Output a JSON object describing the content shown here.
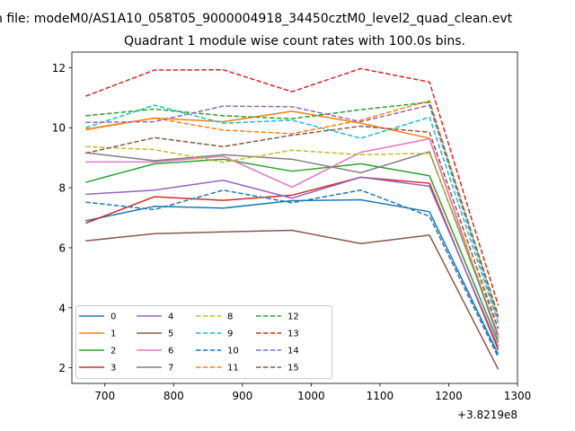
{
  "chart_data": {
    "type": "line",
    "suptitle": "n file: modeM0/AS1A10_058T05_9000004918_34450cztM0_level2_quad_clean.evt",
    "title": "Quadrant 1 module wise count rates with 100.0s bins.",
    "x_offset_label": "+3.8219e8",
    "xlim": [
      652,
      1300
    ],
    "ylim": [
      1.48,
      12.52
    ],
    "xticks": [
      700,
      800,
      900,
      1000,
      1100,
      1200,
      1300
    ],
    "yticks": [
      2,
      4,
      6,
      8,
      10,
      12
    ],
    "x": [
      672,
      772,
      872,
      972,
      1072,
      1172,
      1272
    ],
    "series": [
      {
        "name": "0",
        "color": "#1f77b4",
        "style": "solid",
        "values": [
          6.9,
          7.38,
          7.32,
          7.57,
          7.6,
          7.2,
          2.45
        ]
      },
      {
        "name": "1",
        "color": "#ff7f0e",
        "style": "solid",
        "values": [
          9.95,
          10.32,
          10.2,
          10.55,
          10.15,
          9.65,
          3.0
        ]
      },
      {
        "name": "2",
        "color": "#2ca02c",
        "style": "solid",
        "values": [
          8.18,
          8.8,
          8.95,
          8.55,
          8.8,
          8.4,
          2.85
        ]
      },
      {
        "name": "3",
        "color": "#d62728",
        "style": "solid",
        "values": [
          6.82,
          7.7,
          7.58,
          7.75,
          8.35,
          8.15,
          2.6
        ]
      },
      {
        "name": "4",
        "color": "#9467bd",
        "style": "solid",
        "values": [
          7.78,
          7.92,
          8.25,
          7.65,
          8.35,
          8.05,
          2.7
        ]
      },
      {
        "name": "5",
        "color": "#8c564b",
        "style": "solid",
        "values": [
          6.23,
          6.47,
          6.53,
          6.58,
          6.14,
          6.42,
          1.95
        ]
      },
      {
        "name": "6",
        "color": "#e377c2",
        "style": "solid",
        "values": [
          8.86,
          8.86,
          9.05,
          8.02,
          9.18,
          9.63,
          2.95
        ]
      },
      {
        "name": "7",
        "color": "#7f7f7f",
        "style": "solid",
        "values": [
          9.17,
          8.9,
          9.1,
          8.95,
          8.5,
          9.2,
          3.1
        ]
      },
      {
        "name": "8",
        "color": "#bcbd22",
        "style": "dashed",
        "values": [
          9.37,
          9.27,
          8.85,
          9.25,
          9.1,
          9.15,
          3.3
        ]
      },
      {
        "name": "9",
        "color": "#17becf",
        "style": "dashed",
        "values": [
          10.0,
          10.75,
          10.15,
          10.25,
          9.65,
          10.35,
          3.5
        ]
      },
      {
        "name": "10",
        "color": "#1f77b4",
        "style": "dashed",
        "values": [
          7.52,
          7.27,
          7.92,
          7.5,
          7.92,
          7.05,
          2.35
        ]
      },
      {
        "name": "11",
        "color": "#ff7f0e",
        "style": "dashed",
        "values": [
          9.93,
          10.32,
          9.92,
          9.8,
          10.25,
          10.9,
          3.7
        ]
      },
      {
        "name": "12",
        "color": "#2ca02c",
        "style": "dashed",
        "values": [
          10.4,
          10.62,
          10.4,
          10.3,
          10.6,
          10.85,
          3.75
        ]
      },
      {
        "name": "13",
        "color": "#d62728",
        "style": "dashed",
        "values": [
          11.05,
          11.92,
          11.93,
          11.2,
          11.97,
          11.52,
          4.08
        ]
      },
      {
        "name": "14",
        "color": "#9467bd",
        "style": "dashed",
        "values": [
          10.18,
          10.2,
          10.72,
          10.7,
          10.2,
          10.75,
          3.6
        ]
      },
      {
        "name": "15",
        "color": "#8c564b",
        "style": "dashed",
        "values": [
          9.15,
          9.67,
          9.37,
          9.75,
          10.05,
          9.85,
          3.3
        ]
      }
    ]
  }
}
